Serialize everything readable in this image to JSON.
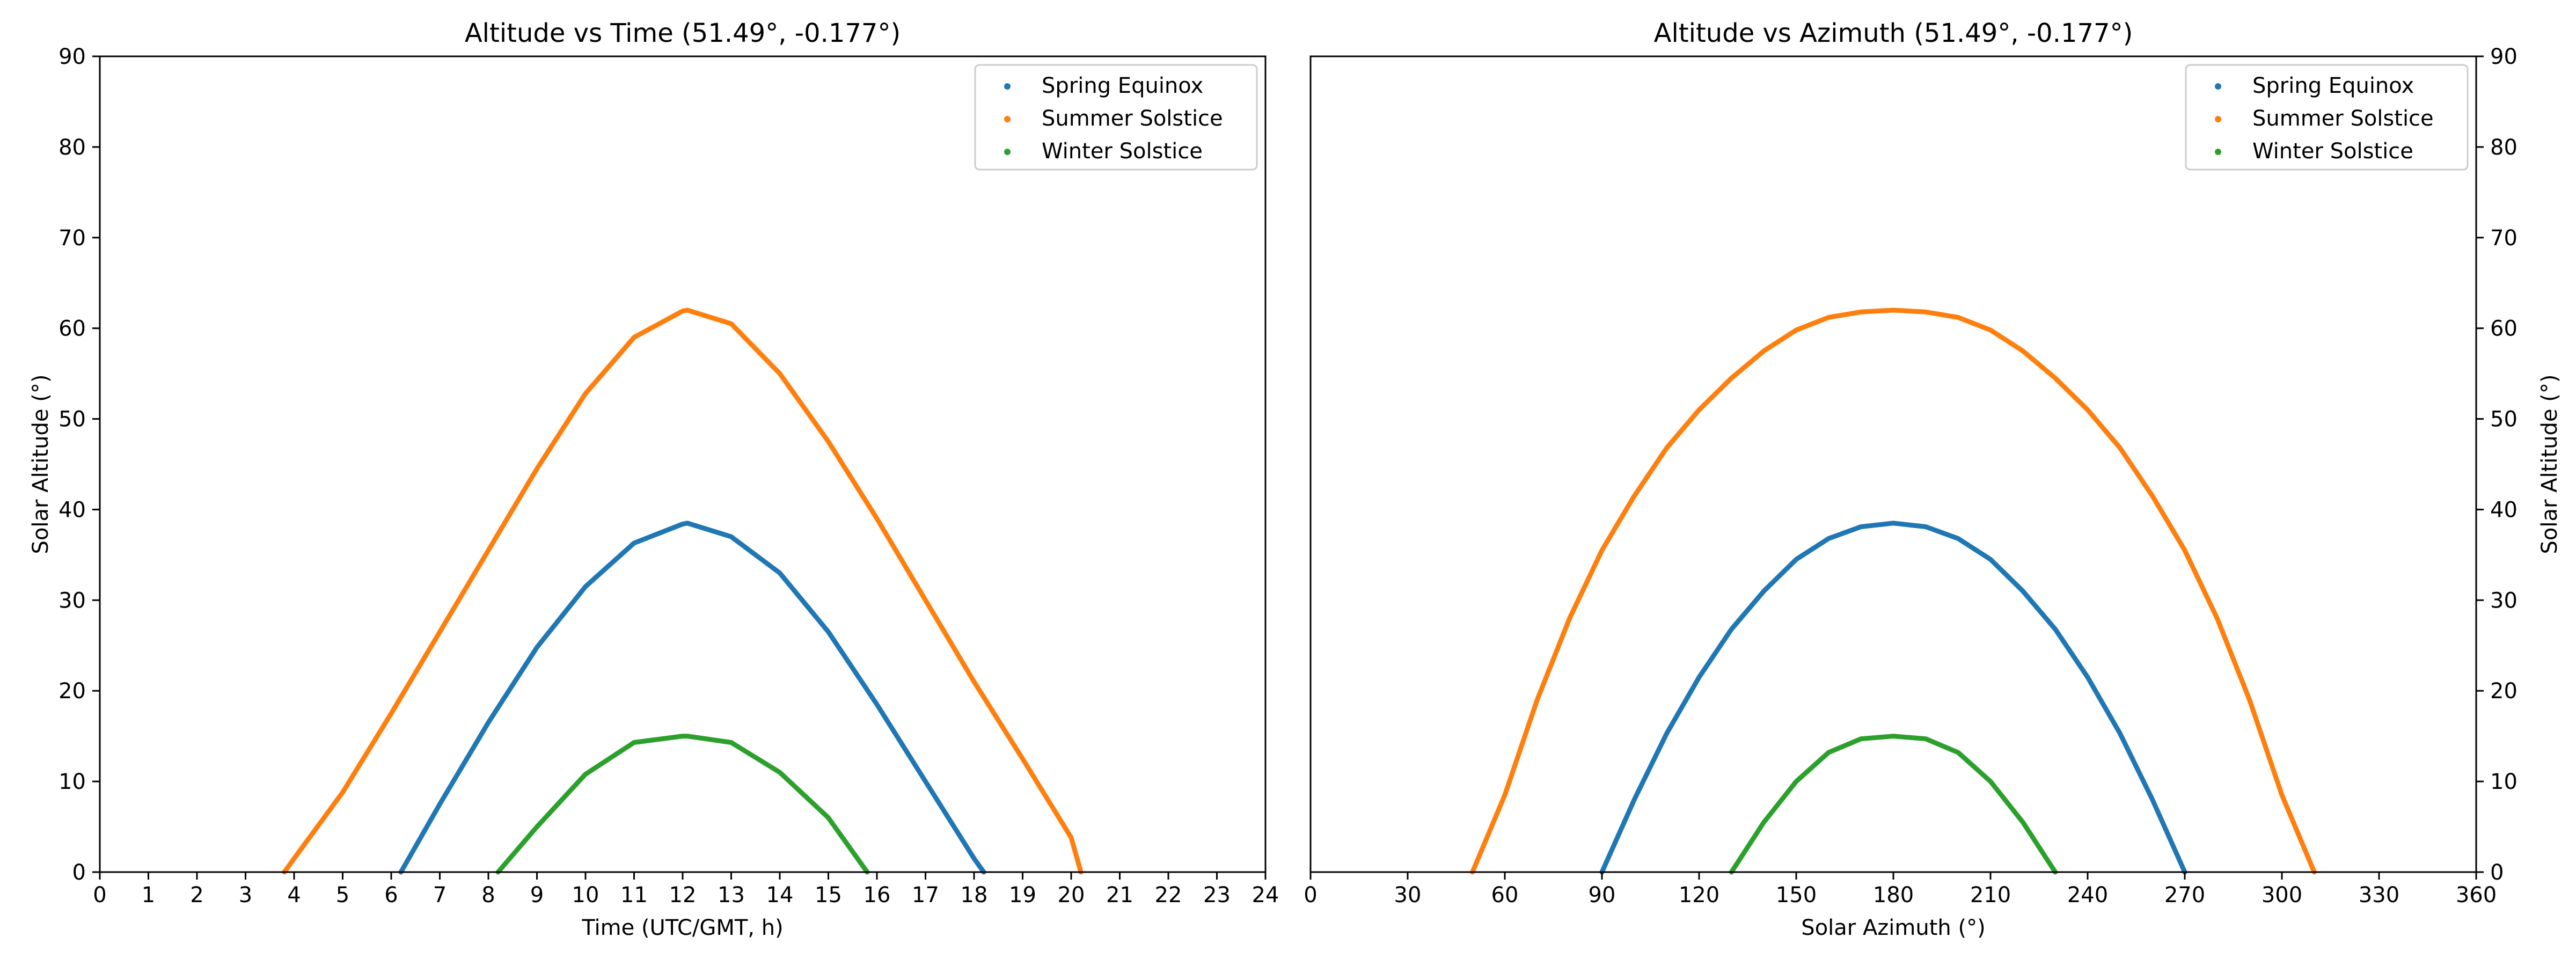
{
  "colors": {
    "spring": "#1f77b4",
    "summer": "#ff7f0e",
    "winter": "#2ca02c"
  },
  "chart_data": [
    {
      "type": "scatter",
      "title": "Altitude vs Time (51.49°, -0.177°)",
      "xlabel": "Time (UTC/GMT, h)",
      "ylabel": "Solar Altitude (°)",
      "xlim": [
        0,
        24
      ],
      "ylim": [
        0,
        90
      ],
      "xticks": [
        "0",
        "1",
        "2",
        "3",
        "4",
        "5",
        "6",
        "7",
        "8",
        "9",
        "10",
        "11",
        "12",
        "13",
        "14",
        "15",
        "16",
        "17",
        "18",
        "19",
        "20",
        "21",
        "22",
        "23",
        "24"
      ],
      "yticks": [
        "0",
        "10",
        "20",
        "30",
        "40",
        "50",
        "60",
        "70",
        "80",
        "90"
      ],
      "grid": false,
      "legend_position": "top-right",
      "series": [
        {
          "name": "Spring Equinox",
          "color": "#1f77b4",
          "x": [
            6.2,
            7,
            8,
            9,
            10,
            11,
            12,
            12.1,
            13,
            14,
            15,
            16,
            17,
            18,
            18.2
          ],
          "y": [
            0,
            7.5,
            16.5,
            24.8,
            31.5,
            36.3,
            38.4,
            38.5,
            37.0,
            33.0,
            26.5,
            18.5,
            10.0,
            1.5,
            0
          ]
        },
        {
          "name": "Summer Solstice",
          "color": "#ff7f0e",
          "x": [
            3.8,
            4,
            5,
            6,
            7,
            8,
            9,
            10,
            11,
            12,
            12.1,
            13,
            14,
            15,
            16,
            17,
            18,
            19,
            20,
            20.2
          ],
          "y": [
            0,
            1.5,
            8.8,
            17.5,
            26.5,
            35.5,
            44.5,
            52.8,
            59.0,
            61.9,
            62.0,
            60.5,
            55.0,
            47.5,
            39.0,
            30.0,
            21.0,
            12.5,
            3.8,
            0
          ]
        },
        {
          "name": "Winter Solstice",
          "color": "#2ca02c",
          "x": [
            8.2,
            9,
            10,
            11,
            12,
            12.1,
            13,
            14,
            15,
            15.8
          ],
          "y": [
            0,
            5.0,
            10.8,
            14.3,
            15.0,
            15.0,
            14.3,
            11.0,
            6.0,
            0
          ]
        }
      ]
    },
    {
      "type": "scatter",
      "title": "Altitude vs Azimuth (51.49°, -0.177°)",
      "xlabel": "Solar Azimuth (°)",
      "ylabel": "Solar Altitude (°)",
      "xlim": [
        0,
        360
      ],
      "ylim": [
        0,
        90
      ],
      "xticks": [
        "0",
        "30",
        "60",
        "90",
        "120",
        "150",
        "180",
        "210",
        "240",
        "270",
        "300",
        "330",
        "360"
      ],
      "yticks": [
        "0",
        "10",
        "20",
        "30",
        "40",
        "50",
        "60",
        "70",
        "80",
        "90"
      ],
      "grid": false,
      "legend_position": "top-right",
      "series": [
        {
          "name": "Spring Equinox",
          "color": "#1f77b4",
          "x": [
            90,
            100,
            110,
            120,
            130,
            140,
            150,
            160,
            170,
            180,
            190,
            200,
            210,
            220,
            230,
            240,
            250,
            260,
            270
          ],
          "y": [
            0,
            8.0,
            15.3,
            21.5,
            26.8,
            31.0,
            34.5,
            36.8,
            38.1,
            38.5,
            38.1,
            36.8,
            34.5,
            31.0,
            26.8,
            21.5,
            15.3,
            8.0,
            0
          ]
        },
        {
          "name": "Summer Solstice",
          "color": "#ff7f0e",
          "x": [
            50,
            60,
            70,
            80,
            90,
            100,
            110,
            120,
            130,
            140,
            150,
            160,
            170,
            180,
            190,
            200,
            210,
            220,
            230,
            240,
            250,
            260,
            270,
            280,
            290,
            300,
            310
          ],
          "y": [
            0,
            8.5,
            19.0,
            28.0,
            35.5,
            41.5,
            46.8,
            51.0,
            54.5,
            57.5,
            59.8,
            61.2,
            61.8,
            62.0,
            61.8,
            61.2,
            59.8,
            57.5,
            54.5,
            51.0,
            46.8,
            41.5,
            35.5,
            28.0,
            19.0,
            8.5,
            0
          ]
        },
        {
          "name": "Winter Solstice",
          "color": "#2ca02c",
          "x": [
            130,
            140,
            150,
            160,
            170,
            180,
            190,
            200,
            210,
            220,
            230
          ],
          "y": [
            0,
            5.5,
            10.0,
            13.2,
            14.7,
            15.0,
            14.7,
            13.2,
            10.0,
            5.5,
            0
          ]
        }
      ]
    }
  ]
}
